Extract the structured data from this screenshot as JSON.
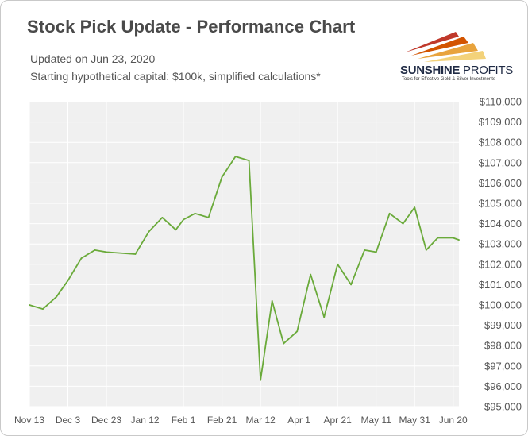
{
  "header": {
    "title": "Stock Pick Update - Performance Chart",
    "updated": "Updated on Jun 23, 2020",
    "capital_note": "Starting hypothetical capital: $100k, simplified calculations*"
  },
  "logo": {
    "name_bold": "SUNSHINE",
    "name_thin": " PROFITS",
    "tagline": "Tools for Effective Gold & Silver Investments",
    "colors": [
      "#c0392b",
      "#e8a33d",
      "#f3d27a"
    ]
  },
  "colors": {
    "line": "#6aaa3a",
    "plot_bg": "#f0f0f0",
    "grid": "#ffffff"
  },
  "chart_data": {
    "type": "line",
    "x": [
      "2019-11-13",
      "2019-11-20",
      "2019-11-27",
      "2019-12-03",
      "2019-12-10",
      "2019-12-17",
      "2019-12-23",
      "2020-01-07",
      "2020-01-14",
      "2020-01-21",
      "2020-01-28",
      "2020-02-01",
      "2020-02-07",
      "2020-02-14",
      "2020-02-21",
      "2020-02-28",
      "2020-03-06",
      "2020-03-12",
      "2020-03-18",
      "2020-03-24",
      "2020-03-31",
      "2020-04-07",
      "2020-04-14",
      "2020-04-21",
      "2020-04-28",
      "2020-05-05",
      "2020-05-11",
      "2020-05-18",
      "2020-05-25",
      "2020-05-31",
      "2020-06-06",
      "2020-06-12",
      "2020-06-20",
      "2020-06-23"
    ],
    "values": [
      100000,
      99800,
      100400,
      101200,
      102300,
      102700,
      102600,
      102500,
      103600,
      104300,
      103700,
      104200,
      104500,
      104300,
      106300,
      107300,
      107100,
      96300,
      100200,
      98100,
      98700,
      101500,
      99400,
      102000,
      101000,
      102700,
      102600,
      104500,
      104000,
      104800,
      102700,
      103300,
      103300,
      103200
    ],
    "x_ticks": [
      "Nov 13",
      "Dec 3",
      "Dec 23",
      "Jan 12",
      "Feb 1",
      "Feb 21",
      "Mar 12",
      "Apr 1",
      "Apr 21",
      "May 11",
      "May 31",
      "Jun 20"
    ],
    "y_ticks": [
      "$95,000",
      "$96,000",
      "$97,000",
      "$98,000",
      "$99,000",
      "$100,000",
      "$101,000",
      "$102,000",
      "$103,000",
      "$104,000",
      "$105,000",
      "$106,000",
      "$107,000",
      "$108,000",
      "$109,000",
      "$110,000"
    ],
    "ylim": [
      95000,
      110000
    ],
    "xlim": [
      "2019-11-13",
      "2020-06-23"
    ],
    "grid": true,
    "legend": "none"
  }
}
